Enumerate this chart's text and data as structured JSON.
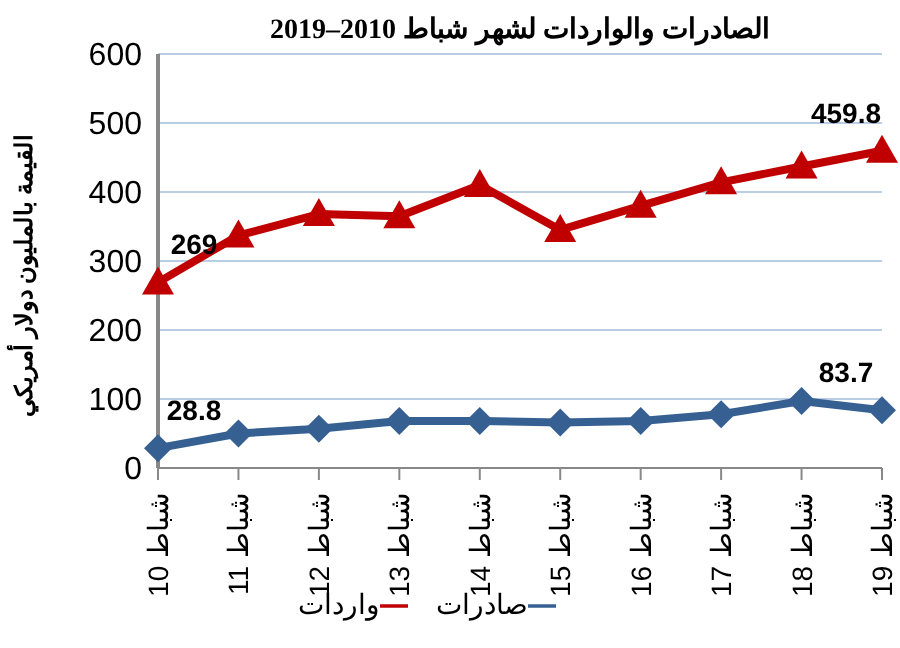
{
  "chart_data": {
    "type": "line",
    "title": "الصادرات والواردات لشهر شباط 2010–2019",
    "ylabel": "القيمة بالمليون دولار أمريكي",
    "categories": [
      "شباط 10",
      "شباط 11",
      "شباط 12",
      "شباط 13",
      "شباط 14",
      "شباط 15",
      "شباط 16",
      "شباط 17",
      "شباط 18",
      "شباط 19"
    ],
    "series": [
      {
        "name": "واردات",
        "color": "#c00000",
        "marker": "triangle",
        "values": [
          269,
          337,
          368,
          365,
          410,
          345,
          380,
          414,
          437,
          459.8
        ],
        "value_labels": [
          "269",
          null,
          null,
          null,
          null,
          null,
          null,
          null,
          null,
          "459.8"
        ]
      },
      {
        "name": "صادرات",
        "color": "#376092",
        "marker": "diamond",
        "values": [
          28.8,
          50,
          57,
          68,
          68,
          66,
          68,
          78,
          97,
          83.7
        ],
        "value_labels": [
          "28.8",
          null,
          null,
          null,
          null,
          null,
          null,
          null,
          null,
          "83.7"
        ]
      }
    ],
    "ylim": [
      0,
      600
    ],
    "yticks": [
      0,
      100,
      200,
      300,
      400,
      500,
      600
    ],
    "grid": "y",
    "legend": "bottom"
  }
}
